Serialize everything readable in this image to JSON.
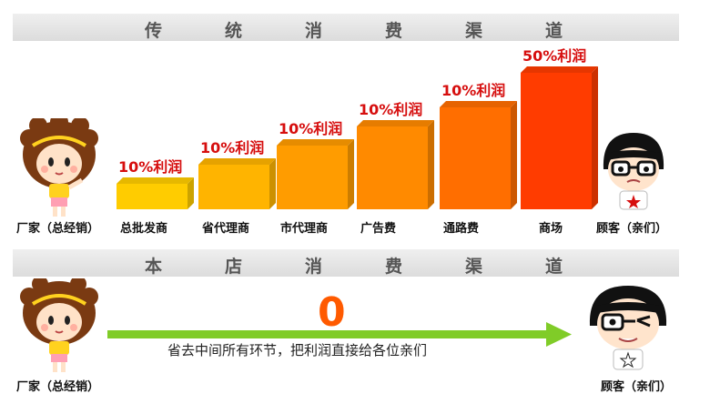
{
  "banner_top": {
    "text": "传统消费渠道",
    "chars": [
      "传",
      "统",
      "消",
      "费",
      "渠",
      "道"
    ]
  },
  "banner_bottom": {
    "text": "本店消费渠道",
    "chars": [
      "本",
      "店",
      "消",
      "费",
      "渠",
      "道"
    ]
  },
  "chart_data": {
    "type": "bar",
    "title": "传统消费渠道",
    "categories": [
      "总批发商",
      "省代理商",
      "市代理商",
      "广告费",
      "通路费",
      "商场"
    ],
    "values": [
      10,
      10,
      10,
      10,
      10,
      50
    ],
    "value_labels": [
      "10%利润",
      "10%利润",
      "10%利润",
      "10%利润",
      "10%利润",
      "50%利润"
    ],
    "start_label": "厂家（总经销）",
    "end_label": "顾客（亲们）",
    "colors": [
      "#ffcc00",
      "#ffb400",
      "#ff9c00",
      "#ff8a00",
      "#ff6e00",
      "#ff3c00"
    ]
  },
  "bottom": {
    "start_label": "厂家（总经销）",
    "end_label": "顾客（亲们）",
    "zero": "0",
    "arrow_text": "省去中间所有环节，把利润直接给各位亲们",
    "arrow_color": "#80cc28",
    "zero_color": "#ff5a00"
  }
}
